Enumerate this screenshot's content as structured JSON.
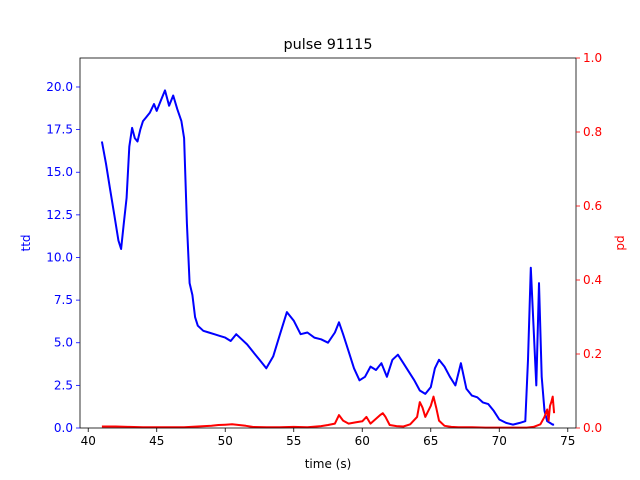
{
  "chart_data": {
    "type": "line",
    "title": "pulse 91115",
    "xlabel": "time (s)",
    "ylabel_left": "ttd",
    "ylabel_right": "pd",
    "xlim": [
      39.4,
      75.6
    ],
    "ylim_left": [
      0,
      21.7
    ],
    "ylim_right": [
      0,
      1.0
    ],
    "x_ticks": [
      40,
      45,
      50,
      55,
      60,
      65,
      70,
      75
    ],
    "y_ticks_left": [
      0.0,
      2.5,
      5.0,
      7.5,
      10.0,
      12.5,
      15.0,
      17.5,
      20.0
    ],
    "y_ticks_left_labels": [
      "0.0",
      "2.5",
      "5.0",
      "7.5",
      "10.0",
      "12.5",
      "15.0",
      "17.5",
      "20.0"
    ],
    "y_ticks_right": [
      0.0,
      0.2,
      0.4,
      0.6,
      0.8,
      1.0
    ],
    "y_ticks_right_labels": [
      "0.0",
      "0.2",
      "0.4",
      "0.6",
      "0.8",
      "1.0"
    ],
    "grid": false,
    "colors": {
      "left": "#0000ff",
      "right": "#ff0000"
    },
    "series": [
      {
        "axis": "left",
        "color": "#0000ff",
        "x": [
          41.0,
          41.3,
          41.6,
          41.9,
          42.2,
          42.4,
          42.6,
          42.8,
          43.0,
          43.2,
          43.4,
          43.6,
          43.8,
          44.0,
          44.2,
          44.5,
          44.8,
          45.0,
          45.3,
          45.6,
          45.9,
          46.2,
          46.5,
          46.8,
          47.0,
          47.2,
          47.4,
          47.6,
          47.8,
          48.0,
          48.4,
          48.8,
          49.2,
          49.6,
          50.0,
          50.4,
          50.8,
          51.2,
          51.6,
          52.0,
          52.5,
          53.0,
          53.5,
          54.0,
          54.5,
          55.0,
          55.5,
          56.0,
          56.5,
          57.0,
          57.5,
          58.0,
          58.3,
          58.6,
          59.0,
          59.4,
          59.8,
          60.2,
          60.6,
          61.0,
          61.4,
          61.8,
          62.2,
          62.6,
          63.0,
          63.4,
          63.8,
          64.2,
          64.6,
          65.0,
          65.3,
          65.6,
          66.0,
          66.4,
          66.8,
          67.2,
          67.6,
          68.0,
          68.4,
          68.8,
          69.2,
          69.6,
          70.0,
          70.5,
          71.0,
          71.5,
          71.9,
          72.1,
          72.3,
          72.5,
          72.7,
          72.9,
          73.1,
          73.3,
          73.5,
          73.7,
          73.9,
          74.0
        ],
        "y": [
          16.8,
          15.5,
          14.0,
          12.5,
          11.0,
          10.5,
          12.0,
          13.5,
          16.5,
          17.6,
          17.0,
          16.8,
          17.5,
          18.0,
          18.2,
          18.5,
          19.0,
          18.6,
          19.2,
          19.8,
          18.9,
          19.5,
          18.7,
          18.0,
          17.0,
          12.0,
          8.5,
          7.8,
          6.5,
          6.0,
          5.7,
          5.6,
          5.5,
          5.4,
          5.3,
          5.1,
          5.5,
          5.2,
          4.9,
          4.5,
          4.0,
          3.5,
          4.2,
          5.5,
          6.8,
          6.3,
          5.5,
          5.6,
          5.3,
          5.2,
          5.0,
          5.6,
          6.2,
          5.5,
          4.5,
          3.5,
          2.8,
          3.0,
          3.6,
          3.4,
          3.8,
          3.0,
          4.0,
          4.3,
          3.8,
          3.3,
          2.8,
          2.2,
          2.0,
          2.4,
          3.5,
          4.0,
          3.6,
          3.0,
          2.5,
          3.8,
          2.3,
          1.9,
          1.8,
          1.5,
          1.4,
          1.0,
          0.5,
          0.3,
          0.2,
          0.3,
          0.4,
          4.0,
          9.4,
          6.0,
          2.5,
          8.5,
          3.0,
          1.0,
          0.4,
          0.3,
          0.2,
          0.2
        ]
      },
      {
        "axis": "right",
        "color": "#ff0000",
        "x": [
          41.0,
          42.0,
          43.0,
          44.0,
          45.0,
          46.0,
          47.0,
          48.0,
          49.0,
          49.5,
          50.0,
          50.5,
          51.0,
          51.5,
          52.0,
          53.0,
          54.0,
          55.0,
          56.0,
          57.0,
          57.5,
          58.0,
          58.3,
          58.6,
          59.0,
          59.5,
          60.0,
          60.3,
          60.6,
          61.0,
          61.3,
          61.5,
          61.7,
          62.0,
          62.5,
          63.0,
          63.5,
          64.0,
          64.2,
          64.4,
          64.6,
          64.8,
          65.0,
          65.2,
          65.4,
          65.6,
          66.0,
          66.5,
          67.0,
          68.0,
          69.0,
          70.0,
          71.0,
          72.0,
          72.5,
          73.0,
          73.3,
          73.5,
          73.6,
          73.7,
          73.8,
          73.9,
          74.0
        ],
        "y": [
          0.004,
          0.004,
          0.003,
          0.002,
          0.002,
          0.002,
          0.002,
          0.004,
          0.006,
          0.008,
          0.009,
          0.01,
          0.008,
          0.006,
          0.003,
          0.002,
          0.002,
          0.003,
          0.002,
          0.005,
          0.008,
          0.012,
          0.035,
          0.02,
          0.012,
          0.015,
          0.018,
          0.03,
          0.012,
          0.025,
          0.035,
          0.04,
          0.03,
          0.008,
          0.005,
          0.004,
          0.01,
          0.03,
          0.07,
          0.055,
          0.03,
          0.045,
          0.06,
          0.085,
          0.055,
          0.02,
          0.006,
          0.003,
          0.002,
          0.002,
          0.001,
          0.001,
          0.001,
          0.001,
          0.003,
          0.01,
          0.03,
          0.05,
          0.02,
          0.06,
          0.07,
          0.085,
          0.04
        ]
      }
    ]
  }
}
